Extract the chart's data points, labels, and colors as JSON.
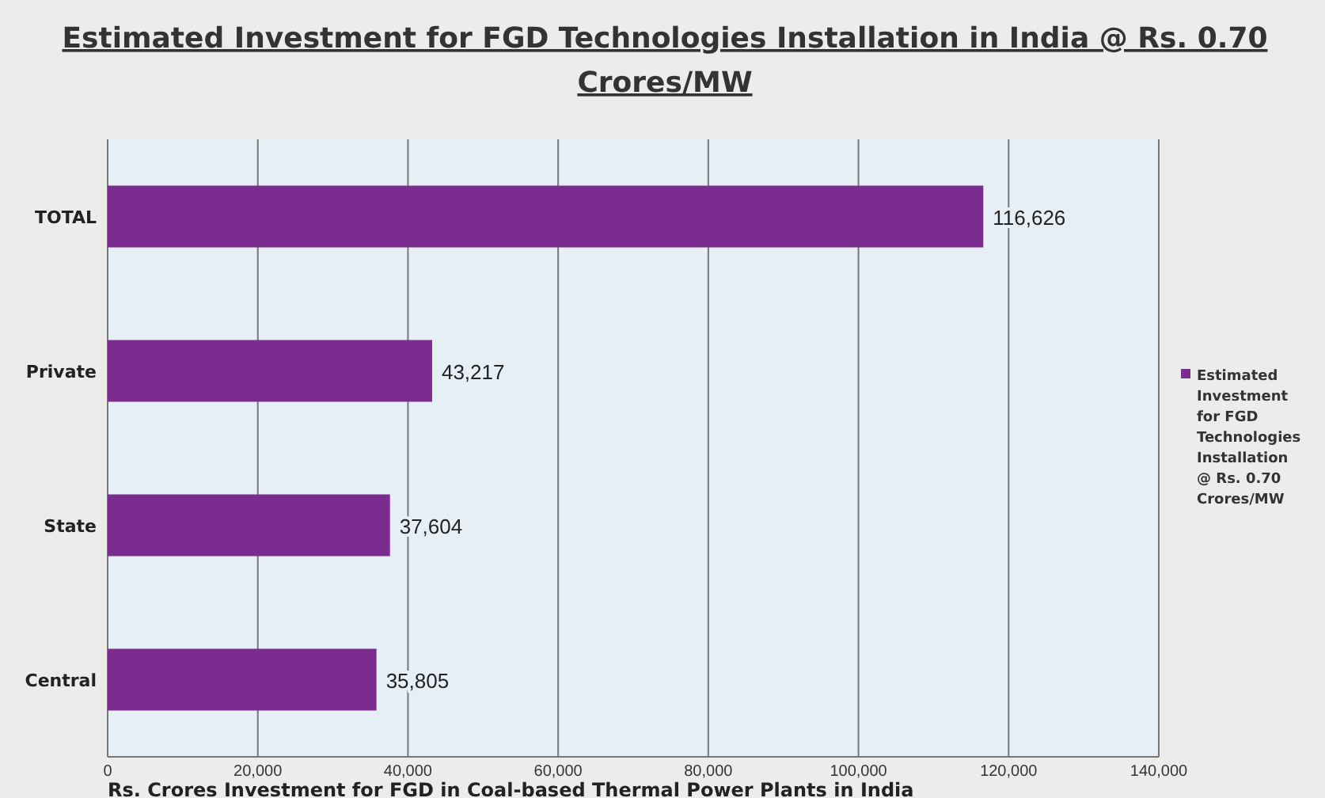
{
  "chart_data": {
    "type": "bar",
    "orientation": "horizontal",
    "title": "Estimated Investment for FGD Technologies Installation in India @ Rs. 0.70 Crores/MW",
    "xlabel": "Rs. Crores Investment for FGD in Coal-based Thermal Power Plants in India",
    "categories": [
      "TOTAL",
      "Private",
      "State",
      "Central"
    ],
    "series": [
      {
        "name": "Estimated Investment for FGD Technologies Installation @ Rs. 0.70 Crores/MW",
        "color": "#7b2d8f",
        "values": [
          116626,
          43217,
          37604,
          35805
        ],
        "value_labels": [
          "116,626",
          "43,217",
          "37,604",
          "35,805"
        ]
      }
    ],
    "xlim": [
      0,
      140000
    ],
    "xticks": [
      {
        "value": 0,
        "label": "0"
      },
      {
        "value": 20000,
        "label": "20,000"
      },
      {
        "value": 40000,
        "label": "40,000"
      },
      {
        "value": 60000,
        "label": "60,000"
      },
      {
        "value": 80000,
        "label": "80,000"
      },
      {
        "value": 100000,
        "label": "100,000"
      },
      {
        "value": 120000,
        "label": "120,000"
      },
      {
        "value": 140000,
        "label": "140,000"
      }
    ],
    "grid": "x",
    "legend": "right"
  }
}
